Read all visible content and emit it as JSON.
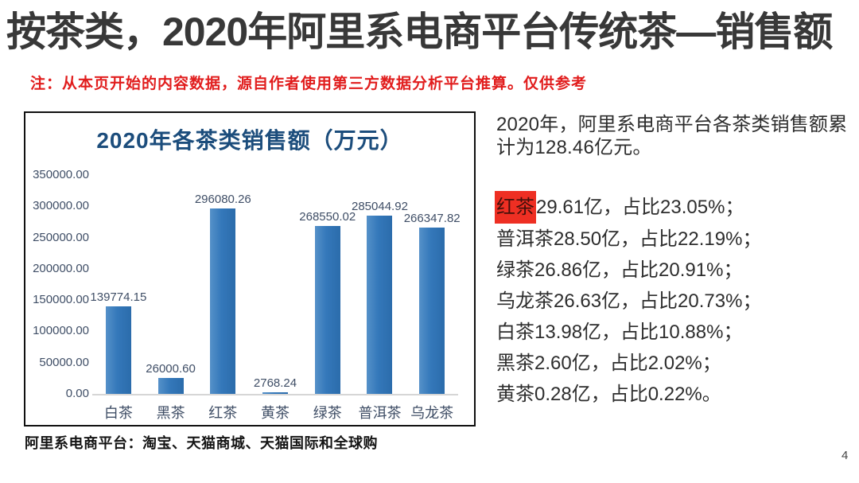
{
  "page": {
    "title": "按茶类，2020年阿里系电商平台传统茶—销售额",
    "note": "注：从本页开始的内容数据，源自作者使用第三方数据分析平台推算。仅供参考",
    "page_number": "4"
  },
  "chart_panel": {
    "footnote": "阿里系电商平台：淘宝、天猫商城、天猫国际和全球购"
  },
  "chart_data": {
    "type": "bar",
    "title": "2020年各茶类销售额（万元）",
    "categories": [
      "白茶",
      "黑茶",
      "红茶",
      "黄茶",
      "绿茶",
      "普洱茶",
      "乌龙茶"
    ],
    "values": [
      139774.15,
      26000.6,
      296080.26,
      2768.24,
      268550.02,
      285044.92,
      266347.82
    ],
    "value_labels": [
      "139774.15",
      "26000.60",
      "296080.26",
      "2768.24",
      "268550.02",
      "285044.92",
      "266347.82"
    ],
    "y_ticks": [
      "350000.00",
      "300000.00",
      "250000.00",
      "200000.00",
      "150000.00",
      "100000.00",
      "50000.00",
      "0.00"
    ],
    "ylim": [
      0,
      350000
    ],
    "grid": false,
    "legend": "none",
    "xlabel": "",
    "ylabel": "",
    "bar_color": "#2E75B6"
  },
  "summary": {
    "intro": "2020年，阿里系电商平台各茶类销售额累计为128.46亿元。",
    "items": [
      {
        "name": "红茶",
        "rest": "29.61亿，占比23.05%；",
        "highlight": true
      },
      {
        "name": "普洱茶",
        "rest": "28.50亿，占比22.19%；",
        "highlight": false
      },
      {
        "name": "绿茶",
        "rest": "26.86亿，占比20.91%；",
        "highlight": false
      },
      {
        "name": "乌龙茶",
        "rest": "26.63亿，占比20.73%；",
        "highlight": false
      },
      {
        "name": "白茶",
        "rest": "13.98亿，占比10.88%；",
        "highlight": false
      },
      {
        "name": "黑茶",
        "rest": "2.60亿，占比2.02%；",
        "highlight": false
      },
      {
        "name": "黄茶",
        "rest": "0.28亿，占比0.22%。",
        "highlight": false
      }
    ]
  },
  "colors": {
    "title_text": "#383838",
    "note_red": "#e11d1d",
    "chart_title_blue": "#1c4d7c",
    "axis_text": "#3f4e66",
    "bar_blue": "#2E75B6",
    "highlight_red": "#ee2f23"
  }
}
